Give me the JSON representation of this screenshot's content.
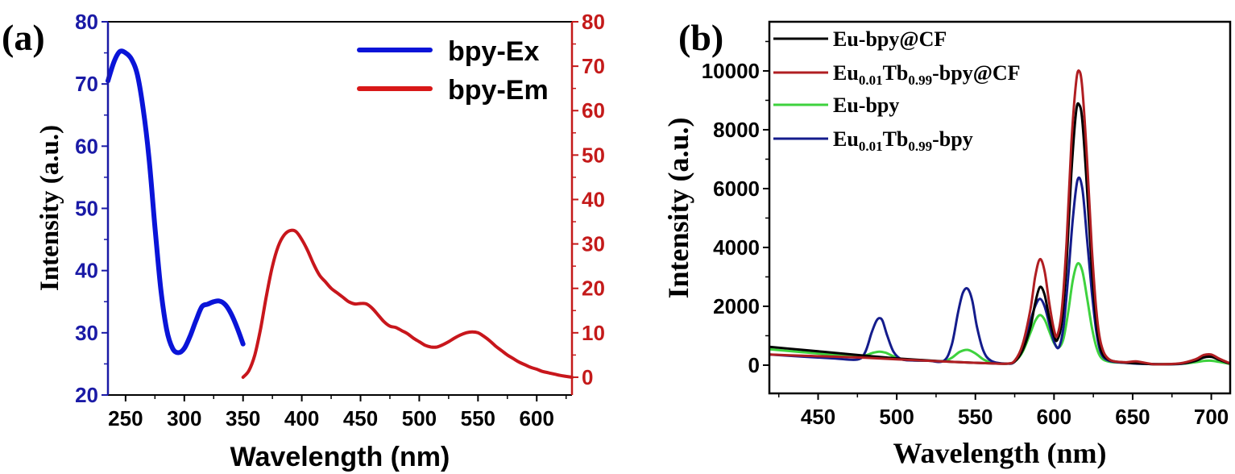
{
  "chart_data": [
    {
      "panel_label": "(a)",
      "type": "line",
      "xlabel": "Wavelength (nm)",
      "ylabel": "Intensity (a.u.)",
      "xlim": [
        235,
        630
      ],
      "x_ticks": [
        250,
        300,
        350,
        400,
        450,
        500,
        550,
        600
      ],
      "ylim_left": [
        20,
        80
      ],
      "y_ticks_left": [
        20,
        30,
        40,
        50,
        60,
        70,
        80
      ],
      "ylim_right": [
        -4,
        80
      ],
      "y_ticks_right": [
        0,
        10,
        20,
        30,
        40,
        50,
        60,
        70,
        80
      ],
      "left_axis_color": "#1a1aa6",
      "right_axis_color": "#c41a1a",
      "legend_position": "top-right",
      "grid": false,
      "series": [
        {
          "name": "bpy-Ex",
          "axis": "left",
          "color": "#0a14d8",
          "x": [
            235,
            240,
            245,
            250,
            255,
            260,
            265,
            270,
            275,
            280,
            285,
            290,
            295,
            300,
            305,
            310,
            315,
            320,
            325,
            330,
            335,
            340,
            345,
            350
          ],
          "y": [
            70.5,
            73.5,
            75.2,
            75.0,
            74.0,
            71.5,
            66.0,
            58.0,
            47.0,
            37.0,
            30.5,
            27.5,
            26.8,
            27.5,
            29.5,
            32.0,
            34.2,
            34.6,
            35.0,
            35.1,
            34.5,
            33.0,
            30.8,
            28.2
          ]
        },
        {
          "name": "bpy-Em",
          "axis": "right",
          "color": "#c8161c",
          "x": [
            350,
            355,
            360,
            365,
            370,
            375,
            380,
            385,
            390,
            395,
            400,
            405,
            410,
            415,
            420,
            425,
            430,
            435,
            440,
            445,
            450,
            455,
            460,
            465,
            470,
            475,
            480,
            485,
            490,
            495,
            500,
            505,
            510,
            515,
            520,
            525,
            530,
            535,
            540,
            545,
            550,
            555,
            560,
            565,
            570,
            575,
            580,
            585,
            590,
            595,
            600,
            605,
            610,
            615,
            620,
            625,
            630
          ],
          "y": [
            0.0,
            1.5,
            5.0,
            11.0,
            18.5,
            25.0,
            29.5,
            32.0,
            33.0,
            32.8,
            31.0,
            28.5,
            25.5,
            23.0,
            21.5,
            20.0,
            19.0,
            18.0,
            17.0,
            16.5,
            16.6,
            16.5,
            15.5,
            14.0,
            12.5,
            11.5,
            11.2,
            10.5,
            9.8,
            8.8,
            8.0,
            7.2,
            6.8,
            6.8,
            7.3,
            8.0,
            8.8,
            9.5,
            10.0,
            10.2,
            10.0,
            9.2,
            8.2,
            7.0,
            6.0,
            5.0,
            4.2,
            3.4,
            2.8,
            2.2,
            1.8,
            1.3,
            1.0,
            0.7,
            0.4,
            0.2,
            0.0
          ]
        }
      ]
    },
    {
      "panel_label": "(b)",
      "type": "line",
      "xlabel": "Wavelength (nm)",
      "ylabel": "Intensity (a.u.)",
      "xlim": [
        419,
        712
      ],
      "x_ticks": [
        450,
        500,
        550,
        600,
        650,
        700
      ],
      "ylim": [
        -960,
        11670
      ],
      "y_ticks": [
        0,
        2000,
        4000,
        6000,
        8000,
        10000
      ],
      "legend_position": "top-left",
      "grid": false,
      "series": [
        {
          "name": "Eu-bpy@CF",
          "label_parts": [
            [
              "Eu-bpy@CF",
              ""
            ]
          ],
          "color": "#000000",
          "x": [
            419,
            440,
            460,
            480,
            500,
            520,
            540,
            560,
            570,
            575,
            580,
            585,
            588,
            591,
            594,
            597,
            600,
            602,
            605,
            608,
            611,
            614,
            616,
            618,
            621,
            624,
            627,
            630,
            635,
            645,
            655,
            665,
            680,
            690,
            695,
            700,
            705,
            712
          ],
          "y": [
            620,
            520,
            420,
            320,
            230,
            160,
            100,
            60,
            50,
            120,
            500,
            1300,
            2100,
            2650,
            2400,
            1600,
            1000,
            850,
            1500,
            3500,
            6500,
            8600,
            8850,
            8300,
            6000,
            3300,
            1400,
            500,
            180,
            90,
            60,
            30,
            50,
            150,
            260,
            280,
            180,
            50
          ]
        },
        {
          "name": "Eu0.01Tb0.99-bpy@CF",
          "label_parts": [
            [
              "Eu",
              ""
            ],
            [
              "0.01",
              "sub"
            ],
            [
              "Tb",
              ""
            ],
            [
              "0.99",
              "sub"
            ],
            [
              "-bpy@CF",
              ""
            ]
          ],
          "color": "#b01e22",
          "x": [
            419,
            440,
            460,
            480,
            500,
            520,
            540,
            560,
            570,
            575,
            580,
            585,
            588,
            591,
            594,
            597,
            600,
            602,
            605,
            608,
            611,
            614,
            616,
            618,
            621,
            624,
            627,
            630,
            635,
            645,
            652,
            660,
            665,
            680,
            690,
            695,
            700,
            705,
            712
          ],
          "y": [
            360,
            320,
            290,
            250,
            200,
            150,
            100,
            60,
            50,
            150,
            700,
            1900,
            3000,
            3600,
            3200,
            2100,
            1200,
            1000,
            1900,
            4200,
            7500,
            9600,
            10000,
            9400,
            7000,
            4000,
            1800,
            700,
            200,
            100,
            130,
            60,
            30,
            60,
            200,
            340,
            360,
            220,
            60
          ]
        },
        {
          "name": "Eu-bpy",
          "label_parts": [
            [
              "Eu-bpy",
              ""
            ]
          ],
          "color": "#3ed23e",
          "x": [
            419,
            440,
            460,
            475,
            480,
            485,
            489,
            493,
            498,
            505,
            520,
            530,
            535,
            540,
            545,
            550,
            555,
            560,
            570,
            575,
            580,
            585,
            588,
            591,
            594,
            597,
            600,
            603,
            606,
            609,
            612,
            615,
            618,
            621,
            624,
            627,
            630,
            635,
            645,
            660,
            680,
            690,
            695,
            700,
            705,
            712
          ],
          "y": [
            540,
            440,
            350,
            280,
            330,
            420,
            460,
            420,
            300,
            180,
            150,
            140,
            250,
            450,
            520,
            400,
            200,
            90,
            50,
            120,
            450,
            1100,
            1500,
            1700,
            1550,
            1150,
            750,
            600,
            900,
            1800,
            2900,
            3450,
            3200,
            2300,
            1300,
            600,
            250,
            120,
            80,
            40,
            40,
            100,
            140,
            150,
            110,
            40
          ]
        },
        {
          "name": "Eu0.01Tb0.99-bpy",
          "label_parts": [
            [
              "Eu",
              ""
            ],
            [
              "0.01",
              "sub"
            ],
            [
              "Tb",
              ""
            ],
            [
              "0.99",
              "sub"
            ],
            [
              "-bpy",
              ""
            ]
          ],
          "color": "#141c8c",
          "x": [
            419,
            440,
            460,
            475,
            480,
            484,
            487,
            489,
            491,
            494,
            498,
            503,
            510,
            520,
            530,
            535,
            539,
            542,
            545,
            548,
            551,
            555,
            560,
            570,
            575,
            580,
            585,
            588,
            591,
            594,
            597,
            600,
            603,
            606,
            609,
            612,
            615,
            618,
            621,
            624,
            627,
            630,
            635,
            645,
            660,
            680,
            690,
            695,
            700,
            705,
            712
          ],
          "y": [
            360,
            290,
            230,
            190,
            450,
            1100,
            1500,
            1600,
            1500,
            1000,
            450,
            200,
            160,
            150,
            150,
            700,
            1800,
            2450,
            2600,
            2200,
            1300,
            500,
            150,
            50,
            120,
            600,
            1500,
            2000,
            2250,
            2000,
            1400,
            800,
            600,
            1300,
            3000,
            5000,
            6300,
            6000,
            4300,
            2500,
            1100,
            400,
            150,
            80,
            40,
            40,
            150,
            260,
            300,
            180,
            50
          ]
        }
      ]
    }
  ]
}
